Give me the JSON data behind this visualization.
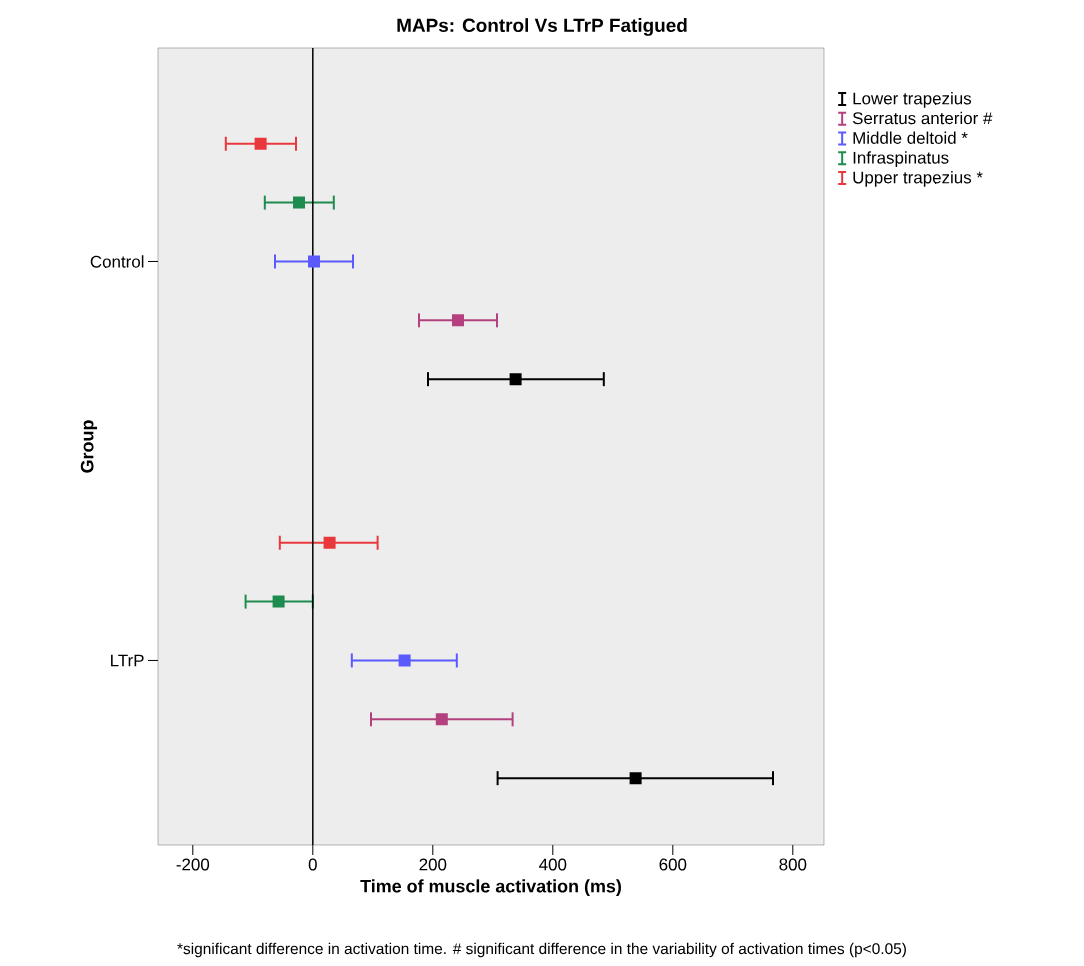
{
  "chart_data": {
    "type": "scatter",
    "orientation": "horizontal",
    "title": "MAPs: Control Vs LTrP Fatigued",
    "xlabel": "Time of muscle activation (ms)",
    "ylabel": "Group",
    "categories": [
      "Control",
      "LTrP"
    ],
    "series": [
      {
        "name": "Lower trapezius",
        "color": "#000000",
        "values": [
          338,
          538
        ],
        "errors": [
          [
            192,
            485
          ],
          [
            308,
            767
          ]
        ]
      },
      {
        "name": "Serratus anterior #",
        "color": "#b5407f",
        "values": [
          242,
          215
        ],
        "errors": [
          [
            177,
            307
          ],
          [
            97,
            333
          ]
        ]
      },
      {
        "name": "Middle deltoid *",
        "color": "#5a5aff",
        "values": [
          2,
          153
        ],
        "errors": [
          [
            -63,
            67
          ],
          [
            65,
            240
          ]
        ]
      },
      {
        "name": "Infraspinatus",
        "color": "#1e8c4e",
        "values": [
          -23,
          -57
        ],
        "errors": [
          [
            -80,
            35
          ],
          [
            -112,
            0
          ]
        ]
      },
      {
        "name": "Upper trapezius *",
        "color": "#e8383d",
        "values": [
          -87,
          28
        ],
        "errors": [
          [
            -145,
            -28
          ],
          [
            -55,
            108
          ]
        ]
      }
    ],
    "xlim": [
      -258,
      852
    ],
    "xticks": [
      -200,
      0,
      200,
      400,
      600,
      800
    ],
    "ref_lines": [
      {
        "axis": "x",
        "value": 0,
        "color": "#000000"
      }
    ],
    "marker": "square",
    "legend": "top right",
    "grid": false,
    "annotations": [
      "*significant difference in activation time. # significant difference in the variability of activation times (p<0.05)"
    ]
  }
}
